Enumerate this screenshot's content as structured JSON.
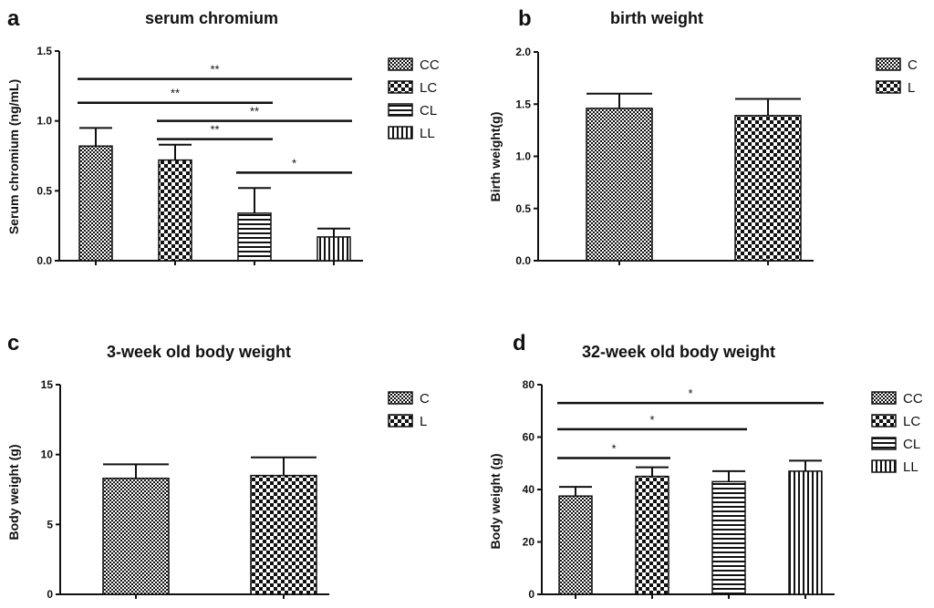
{
  "chart_data": [
    {
      "panel": "a",
      "type": "bar",
      "title": "serum chromium",
      "ylabel": "Serum chromium (ng/mL)",
      "xlabel": "",
      "ylim": [
        0,
        1.5
      ],
      "yticks": [
        0.0,
        0.5,
        1.0,
        1.5
      ],
      "ytick_labels": [
        "0.0",
        "0.5",
        "1.0",
        "1.5"
      ],
      "categories": [
        "CC",
        "LC",
        "CL",
        "LL"
      ],
      "values": [
        0.82,
        0.72,
        0.34,
        0.17
      ],
      "errors": [
        0.13,
        0.11,
        0.18,
        0.06
      ],
      "patterns": [
        "dense-check",
        "check",
        "hlines",
        "vlines"
      ],
      "legend": [
        "CC",
        "LC",
        "CL",
        "LL"
      ],
      "significance": [
        {
          "from": 0,
          "to": 3,
          "label": "**",
          "y": 1.3
        },
        {
          "from": 0,
          "to": 2,
          "label": "**",
          "y": 1.13
        },
        {
          "from": 1,
          "to": 3,
          "label": "**",
          "y": 1.0
        },
        {
          "from": 1,
          "to": 2,
          "label": "**",
          "y": 0.87
        },
        {
          "from": 2,
          "to": 3,
          "label": "*",
          "y": 0.63
        }
      ]
    },
    {
      "panel": "b",
      "type": "bar",
      "title": "birth weight",
      "ylabel": "Birth weight(g)",
      "xlabel": "",
      "ylim": [
        0,
        2.0
      ],
      "yticks": [
        0.0,
        0.5,
        1.0,
        1.5,
        2.0
      ],
      "ytick_labels": [
        "0.0",
        "0.5",
        "1.0",
        "1.5",
        "2.0"
      ],
      "categories": [
        "C",
        "L"
      ],
      "values": [
        1.46,
        1.39
      ],
      "errors": [
        0.14,
        0.16
      ],
      "patterns": [
        "dense-check",
        "check"
      ],
      "legend": [
        "C",
        "L"
      ],
      "significance": []
    },
    {
      "panel": "c",
      "type": "bar",
      "title": "3-week old body weight",
      "ylabel": "Body weight (g)",
      "xlabel": "",
      "ylim": [
        0,
        15
      ],
      "yticks": [
        0,
        5,
        10,
        15
      ],
      "ytick_labels": [
        "0",
        "5",
        "10",
        "15"
      ],
      "categories": [
        "C",
        "L"
      ],
      "values": [
        8.3,
        8.5
      ],
      "errors": [
        1.0,
        1.3
      ],
      "patterns": [
        "dense-check",
        "check"
      ],
      "legend": [
        "C",
        "L"
      ],
      "significance": []
    },
    {
      "panel": "d",
      "type": "bar",
      "title": "32-week old body weight",
      "ylabel": "Body weight (g)",
      "xlabel": "",
      "ylim": [
        0,
        80
      ],
      "yticks": [
        0,
        20,
        40,
        60,
        80
      ],
      "ytick_labels": [
        "0",
        "20",
        "40",
        "60",
        "80"
      ],
      "categories": [
        "CC",
        "LC",
        "CL",
        "LL"
      ],
      "values": [
        37.5,
        45.0,
        43.0,
        47.0
      ],
      "errors": [
        3.5,
        3.5,
        4.0,
        4.0
      ],
      "patterns": [
        "dense-check",
        "check",
        "hlines",
        "vlines"
      ],
      "legend": [
        "CC",
        "LC",
        "CL",
        "LL"
      ],
      "significance": [
        {
          "from": 0,
          "to": 3,
          "label": "*",
          "y": 73
        },
        {
          "from": 0,
          "to": 2,
          "label": "*",
          "y": 63
        },
        {
          "from": 0,
          "to": 1,
          "label": "*",
          "y": 52
        }
      ]
    }
  ]
}
